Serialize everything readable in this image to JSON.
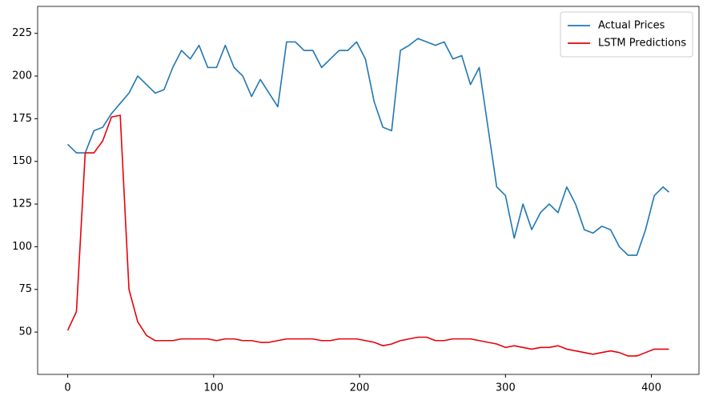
{
  "chart_data": {
    "type": "line",
    "x": [
      0,
      6,
      12,
      18,
      24,
      30,
      36,
      42,
      48,
      54,
      60,
      66,
      72,
      78,
      84,
      90,
      96,
      102,
      108,
      114,
      120,
      126,
      132,
      138,
      144,
      150,
      156,
      162,
      168,
      174,
      180,
      186,
      192,
      198,
      204,
      210,
      216,
      222,
      228,
      234,
      240,
      246,
      252,
      258,
      264,
      270,
      276,
      282,
      288,
      294,
      300,
      306,
      312,
      318,
      324,
      330,
      336,
      342,
      348,
      354,
      360,
      366,
      372,
      378,
      384,
      390,
      396,
      402,
      408,
      412
    ],
    "series": [
      {
        "name": "Actual Prices",
        "color": "#1f77b4",
        "values": [
          160,
          155,
          155,
          168,
          170,
          178,
          184,
          190,
          200,
          195,
          190,
          192,
          205,
          215,
          210,
          218,
          205,
          205,
          218,
          205,
          200,
          188,
          198,
          190,
          182,
          220,
          220,
          215,
          215,
          205,
          210,
          215,
          215,
          220,
          210,
          185,
          170,
          168,
          215,
          218,
          222,
          220,
          218,
          220,
          210,
          212,
          195,
          205,
          170,
          135,
          130,
          105,
          125,
          110,
          120,
          125,
          120,
          135,
          125,
          110,
          108,
          112,
          110,
          100,
          95,
          95,
          110,
          130,
          135,
          132
        ]
      },
      {
        "name": "LSTM Predictions",
        "color": "#e8000b",
        "values": [
          51,
          62,
          155,
          155,
          162,
          176,
          177,
          75,
          56,
          48,
          45,
          45,
          45,
          46,
          46,
          46,
          46,
          45,
          46,
          46,
          45,
          45,
          44,
          44,
          45,
          46,
          46,
          46,
          46,
          45,
          45,
          46,
          46,
          46,
          45,
          44,
          42,
          43,
          45,
          46,
          47,
          47,
          45,
          45,
          46,
          46,
          46,
          45,
          44,
          43,
          41,
          42,
          41,
          40,
          41,
          41,
          42,
          40,
          39,
          38,
          37,
          38,
          39,
          38,
          36,
          36,
          38,
          40,
          40,
          40
        ]
      }
    ],
    "xlim": [
      -20.6,
      432.6
    ],
    "ylim": [
      25.2,
      240.8
    ],
    "xticks": [
      0,
      100,
      200,
      300,
      400
    ],
    "yticks": [
      50,
      75,
      100,
      125,
      150,
      175,
      200,
      225
    ],
    "grid": false,
    "legend": "upper right"
  }
}
